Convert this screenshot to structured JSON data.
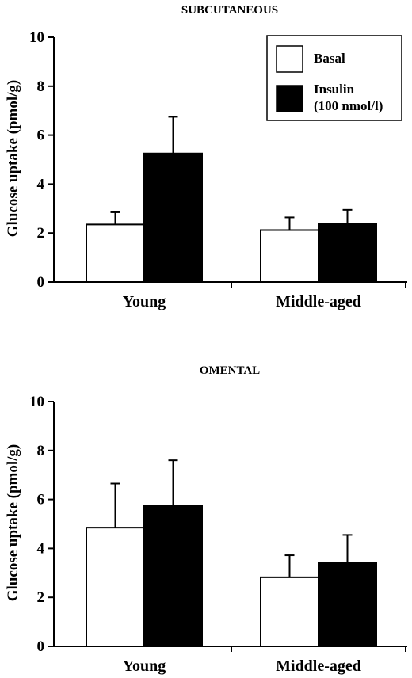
{
  "chart_data": [
    {
      "type": "bar",
      "title": "SUBCUTANEOUS",
      "ylabel": "Glucose uptake (pmol/g)",
      "xlabel": "",
      "ylim": [
        0,
        10
      ],
      "yticks": [
        0,
        2,
        4,
        6,
        8,
        10
      ],
      "categories": [
        "Young",
        "Middle-aged"
      ],
      "series": [
        {
          "name": "Basal",
          "values": [
            2.35,
            2.12
          ],
          "errors": [
            0.5,
            0.52
          ],
          "color": "#ffffff"
        },
        {
          "name": "Insulin (100 nmol/l)",
          "values": [
            5.25,
            2.38
          ],
          "errors": [
            1.5,
            0.57
          ],
          "color": "#000000"
        }
      ],
      "legend": {
        "position": "top-right",
        "entries": [
          {
            "lines": [
              "Basal"
            ]
          },
          {
            "lines": [
              "Insulin",
              "(100 nmol/l)"
            ]
          }
        ]
      }
    },
    {
      "type": "bar",
      "title": "OMENTAL",
      "ylabel": "Glucose uptake (pmol/g)",
      "xlabel": "",
      "ylim": [
        0,
        10
      ],
      "yticks": [
        0,
        2,
        4,
        6,
        8,
        10
      ],
      "categories": [
        "Young",
        "Middle-aged"
      ],
      "series": [
        {
          "name": "Basal",
          "values": [
            4.85,
            2.82
          ],
          "errors": [
            1.8,
            0.9
          ],
          "color": "#ffffff"
        },
        {
          "name": "Insulin (100 nmol/l)",
          "values": [
            5.75,
            3.4
          ],
          "errors": [
            1.85,
            1.15
          ],
          "color": "#000000"
        }
      ]
    }
  ]
}
